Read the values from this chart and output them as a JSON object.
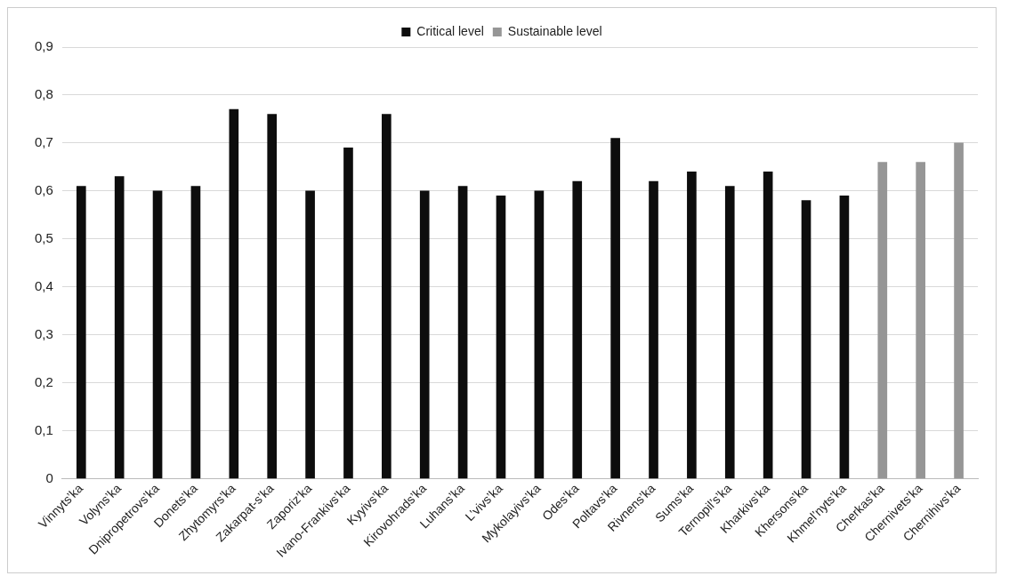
{
  "chart_data": {
    "type": "bar",
    "categories": [
      "Vinnyts’ka",
      "Volyns’ka",
      "Dnipropetrovs’ka",
      "Donets’ka",
      "Zhytomyrs’ka",
      "Zakarpat-s’ka",
      "Zaporiz’ka",
      "Ivano-Frankivs’ka",
      "Kyyivs’ka",
      "Kirovohrads’ka",
      "Luhans’ka",
      "L’vivs’ka",
      "Mykolayivs’ka",
      "Odes’ka",
      "Poltavs’ka",
      "Rivnens’ka",
      "Sums’ka",
      "Ternopil’s’ka",
      "Kharkivs’ka",
      "Khersons’ka",
      "Khmel’nyts’ka",
      "Cherkas’ka",
      "Chernivets’ka",
      "Chernihivs’ka"
    ],
    "series": [
      {
        "name": "Critical level",
        "color": "#0d0d0d",
        "values": [
          0.61,
          0.63,
          0.6,
          0.61,
          0.77,
          0.76,
          0.6,
          0.69,
          0.76,
          0.6,
          0.61,
          0.59,
          0.6,
          0.62,
          0.71,
          0.62,
          0.64,
          0.61,
          0.64,
          0.58,
          0.59,
          null,
          null,
          null
        ]
      },
      {
        "name": "Sustainable level",
        "color": "#969696",
        "values": [
          null,
          null,
          null,
          null,
          null,
          null,
          null,
          null,
          null,
          null,
          null,
          null,
          null,
          null,
          null,
          null,
          null,
          null,
          null,
          null,
          null,
          0.66,
          0.66,
          0.7
        ]
      }
    ],
    "ylim": [
      0,
      0.9
    ],
    "yticks": [
      {
        "value": 0,
        "label": "0"
      },
      {
        "value": 0.1,
        "label": "0,1"
      },
      {
        "value": 0.2,
        "label": "0,2"
      },
      {
        "value": 0.3,
        "label": "0,3"
      },
      {
        "value": 0.4,
        "label": "0,4"
      },
      {
        "value": 0.5,
        "label": "0,5"
      },
      {
        "value": 0.6,
        "label": "0,6"
      },
      {
        "value": 0.7,
        "label": "0,7"
      },
      {
        "value": 0.8,
        "label": "0,8"
      },
      {
        "value": 0.9,
        "label": "0,9"
      }
    ],
    "grid": "y",
    "legend": "top"
  }
}
